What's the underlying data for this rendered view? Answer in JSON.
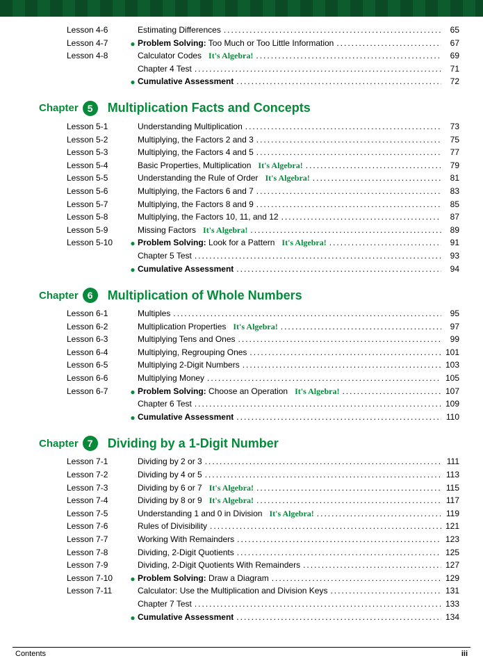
{
  "chapterWord": "Chapter",
  "algebraTag": "It's Algebra!",
  "footer": {
    "left": "Contents",
    "right": "iii"
  },
  "pre": {
    "rows": [
      {
        "lesson": "Lesson 4-6",
        "title": "Estimating Differences",
        "page": "65"
      },
      {
        "lesson": "Lesson 4-7",
        "bullet": true,
        "bold": "Problem Solving:",
        "title": " Too Much or Too Little Information",
        "page": "67"
      },
      {
        "lesson": "Lesson 4-8",
        "title": "Calculator Codes",
        "alg": true,
        "page": "69"
      },
      {
        "lesson": "",
        "title": "Chapter 4 Test",
        "page": "71"
      },
      {
        "lesson": "",
        "bullet": true,
        "bold": "Cumulative Assessment",
        "page": "72"
      }
    ]
  },
  "chapters": [
    {
      "num": "5",
      "title": "Multiplication Facts and Concepts",
      "rows": [
        {
          "lesson": "Lesson 5-1",
          "title": "Understanding Multiplication",
          "page": "73"
        },
        {
          "lesson": "Lesson 5-2",
          "title": "Multiplying, the Factors 2 and 3",
          "page": "75"
        },
        {
          "lesson": "Lesson 5-3",
          "title": "Multiplying, the Factors 4 and 5",
          "page": "77"
        },
        {
          "lesson": "Lesson 5-4",
          "title": "Basic Properties, Multiplication",
          "alg": true,
          "page": "79"
        },
        {
          "lesson": "Lesson 5-5",
          "title": "Understanding the Rule of Order",
          "alg": true,
          "page": "81"
        },
        {
          "lesson": "Lesson 5-6",
          "title": "Multiplying, the Factors 6 and 7",
          "page": "83"
        },
        {
          "lesson": "Lesson 5-7",
          "title": "Multiplying, the Factors 8 and 9",
          "page": "85"
        },
        {
          "lesson": "Lesson 5-8",
          "title": "Multiplying, the Factors 10, 11, and 12",
          "page": "87"
        },
        {
          "lesson": "Lesson 5-9",
          "title": "Missing Factors",
          "alg": true,
          "page": "89"
        },
        {
          "lesson": "Lesson 5-10",
          "bullet": true,
          "bold": "Problem Solving:",
          "title": " Look for a Pattern",
          "alg": true,
          "page": "91"
        },
        {
          "lesson": "",
          "title": "Chapter 5 Test",
          "page": "93"
        },
        {
          "lesson": "",
          "bullet": true,
          "bold": "Cumulative Assessment",
          "page": "94"
        }
      ]
    },
    {
      "num": "6",
      "title": "Multiplication of Whole Numbers",
      "rows": [
        {
          "lesson": "Lesson 6-1",
          "title": "Multiples",
          "page": "95"
        },
        {
          "lesson": "Lesson 6-2",
          "title": "Multiplication Properties",
          "alg": true,
          "page": "97"
        },
        {
          "lesson": "Lesson 6-3",
          "title": "Multiplying Tens and Ones",
          "page": "99"
        },
        {
          "lesson": "Lesson 6-4",
          "title": "Multiplying, Regrouping Ones",
          "page": "101"
        },
        {
          "lesson": "Lesson 6-5",
          "title": "Multiplying 2-Digit Numbers",
          "page": "103"
        },
        {
          "lesson": "Lesson 6-6",
          "title": "Multiplying Money",
          "page": "105"
        },
        {
          "lesson": "Lesson 6-7",
          "bullet": true,
          "bold": "Problem Solving:",
          "title": " Choose an Operation",
          "alg": true,
          "page": "107"
        },
        {
          "lesson": "",
          "title": "Chapter 6 Test",
          "page": "109"
        },
        {
          "lesson": "",
          "bullet": true,
          "bold": "Cumulative Assessment",
          "page": "110"
        }
      ]
    },
    {
      "num": "7",
      "title": "Dividing by a 1-Digit Number",
      "rows": [
        {
          "lesson": "Lesson 7-1",
          "title": "Dividing by 2 or 3",
          "page": "111"
        },
        {
          "lesson": "Lesson 7-2",
          "title": "Dividing by 4 or 5",
          "page": "113"
        },
        {
          "lesson": "Lesson 7-3",
          "title": "Dividing by 6 or 7",
          "alg": true,
          "page": "115"
        },
        {
          "lesson": "Lesson 7-4",
          "title": "Dividing by 8 or 9",
          "alg": true,
          "page": "117"
        },
        {
          "lesson": "Lesson 7-5",
          "title": "Understanding 1 and 0 in Division",
          "alg": true,
          "page": "119"
        },
        {
          "lesson": "Lesson 7-6",
          "title": "Rules of Divisibility",
          "page": "121"
        },
        {
          "lesson": "Lesson 7-7",
          "title": "Working With Remainders",
          "page": "123"
        },
        {
          "lesson": "Lesson 7-8",
          "title": "Dividing, 2-Digit Quotients",
          "page": "125"
        },
        {
          "lesson": "Lesson 7-9",
          "title": "Dividing, 2-Digit Quotients With Remainders",
          "page": "127"
        },
        {
          "lesson": "Lesson 7-10",
          "bullet": true,
          "bold": "Problem Solving:",
          "title": " Draw a Diagram",
          "page": "129"
        },
        {
          "lesson": "Lesson 7-11",
          "title": "Calculator: Use the Multiplication and Division Keys",
          "page": "131"
        },
        {
          "lesson": "",
          "title": "Chapter 7 Test",
          "page": "133"
        },
        {
          "lesson": "",
          "bullet": true,
          "bold": "Cumulative Assessment",
          "page": "134"
        }
      ]
    }
  ]
}
